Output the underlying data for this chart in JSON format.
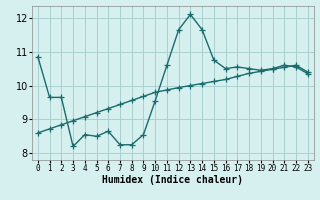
{
  "title": "",
  "xlabel": "Humidex (Indice chaleur)",
  "bg_color": "#d6f0f0",
  "grid_color": "#aacfcf",
  "line_color": "#1a6b6b",
  "x_jagged": [
    0,
    1,
    2,
    3,
    4,
    5,
    6,
    7,
    8,
    9,
    10,
    11,
    12,
    13,
    14,
    15,
    16,
    17,
    18,
    19,
    20,
    21,
    22,
    23
  ],
  "y_jagged": [
    10.85,
    9.65,
    9.65,
    8.2,
    8.55,
    8.5,
    8.65,
    8.25,
    8.25,
    8.55,
    9.55,
    10.6,
    11.65,
    12.1,
    11.65,
    10.75,
    10.5,
    10.55,
    10.5,
    10.45,
    10.5,
    10.6,
    10.55,
    10.35
  ],
  "x_smooth": [
    0,
    1,
    2,
    3,
    4,
    5,
    6,
    7,
    8,
    9,
    10,
    11,
    12,
    13,
    14,
    15,
    16,
    17,
    18,
    19,
    20,
    21,
    22,
    23
  ],
  "y_smooth": [
    8.6,
    8.72,
    8.84,
    8.96,
    9.08,
    9.2,
    9.32,
    9.44,
    9.56,
    9.68,
    9.8,
    9.87,
    9.94,
    10.0,
    10.06,
    10.12,
    10.18,
    10.27,
    10.36,
    10.42,
    10.48,
    10.54,
    10.6,
    10.4
  ],
  "xlim": [
    -0.5,
    23.5
  ],
  "ylim": [
    7.8,
    12.35
  ],
  "yticks": [
    8,
    9,
    10,
    11,
    12
  ],
  "xticks": [
    0,
    1,
    2,
    3,
    4,
    5,
    6,
    7,
    8,
    9,
    10,
    11,
    12,
    13,
    14,
    15,
    16,
    17,
    18,
    19,
    20,
    21,
    22,
    23
  ],
  "marker": "+",
  "markersize": 4,
  "linewidth": 1.0
}
